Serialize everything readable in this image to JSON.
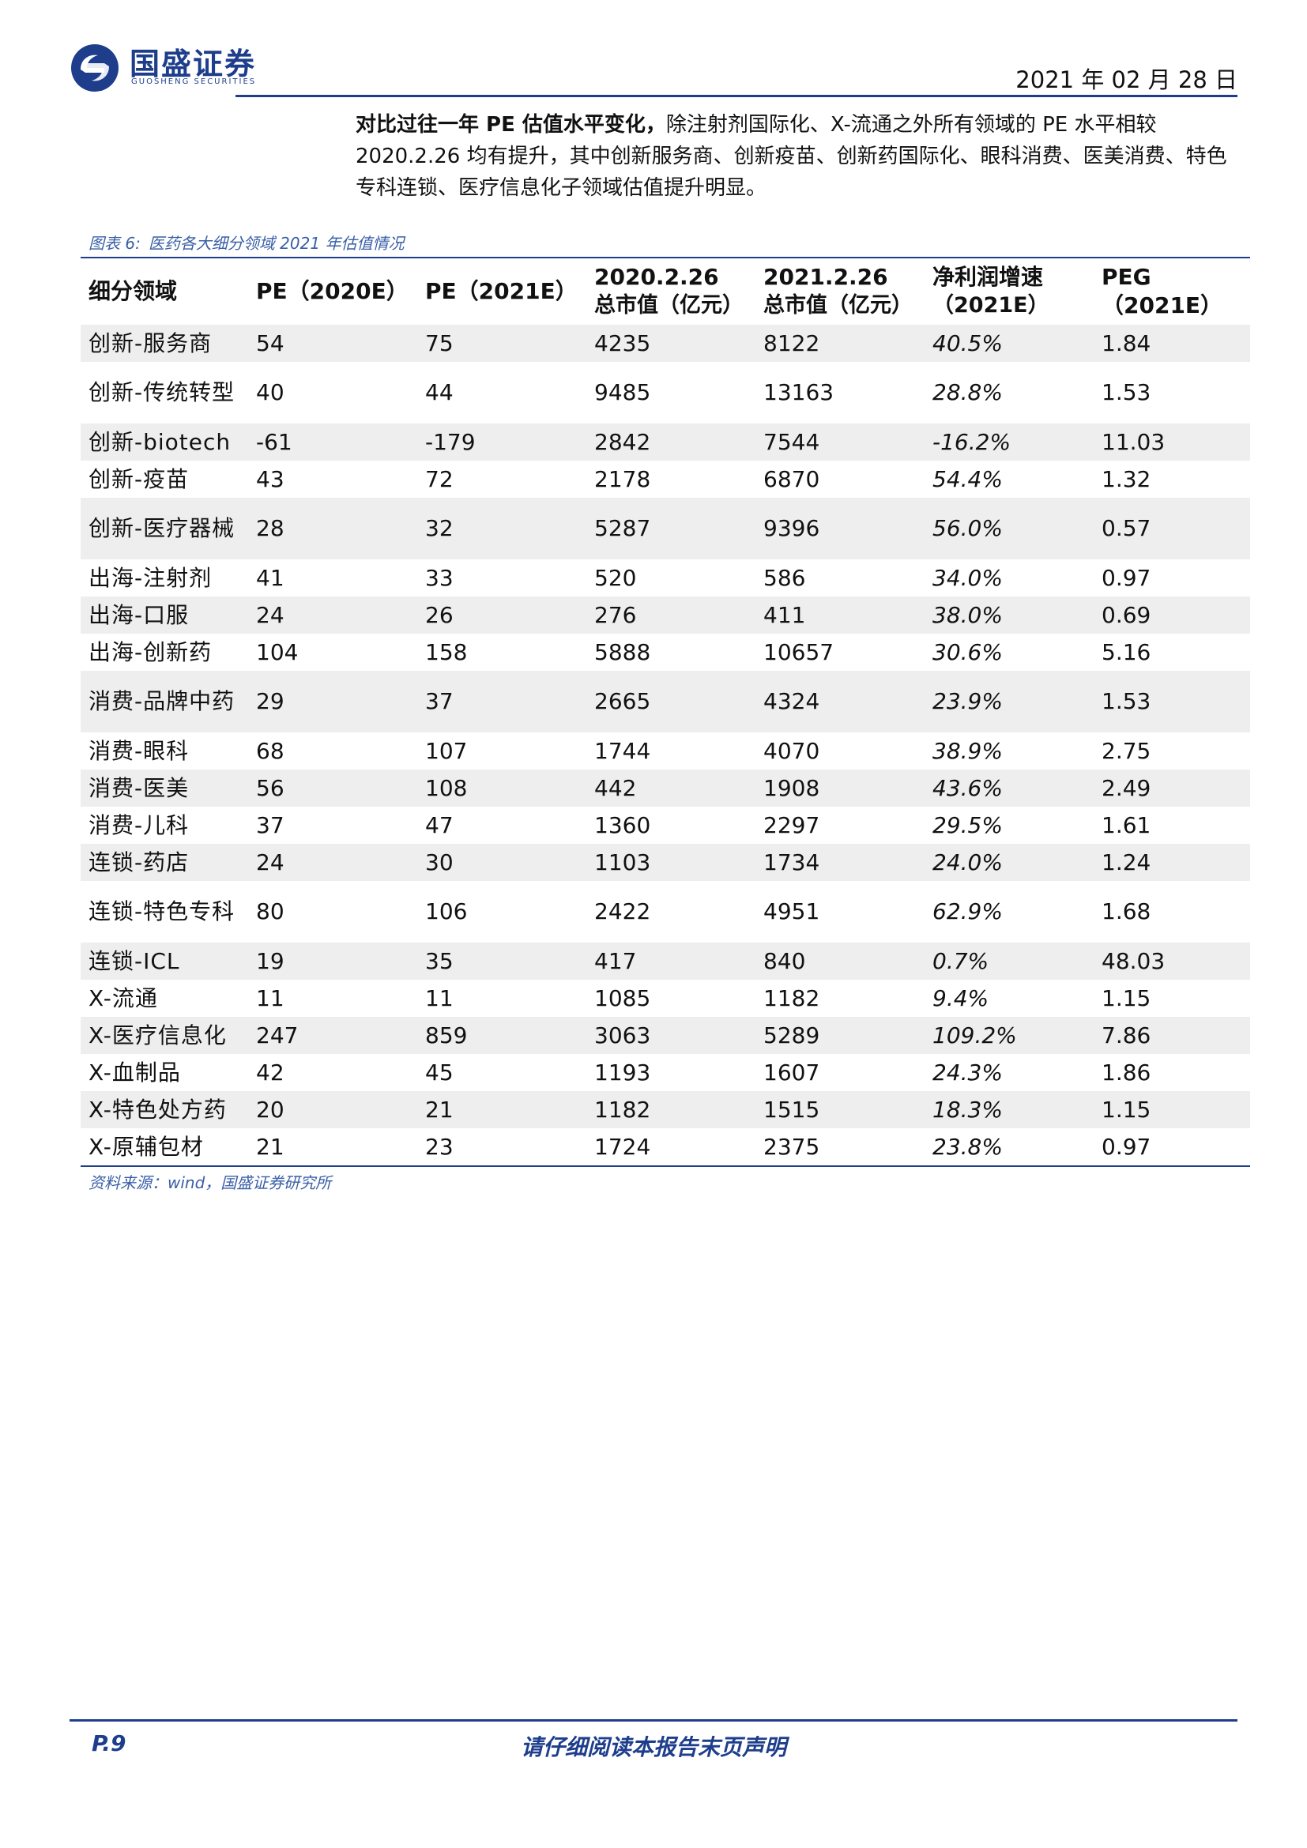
{
  "header": {
    "brand_cn": "国盛证券",
    "brand_en": "GUOSHENG SECURITIES",
    "date": "2021 年 02 月 28 日"
  },
  "intro": {
    "lead": "对比过往一年 PE 估值水平变化，",
    "text": "除注射剂国际化、X-流通之外所有领域的 PE 水平相较 2020.2.26 均有提升，其中创新服务商、创新疫苗、创新药国际化、眼科消费、医美消费、特色专科连锁、医疗信息化子领域估值提升明显。"
  },
  "figure": {
    "label": "图表 6:",
    "title": "医药各大细分领域 2021 年估值情况",
    "columns": [
      {
        "line1": "细分领域",
        "line2": ""
      },
      {
        "line1": "PE（2020E）",
        "line2": ""
      },
      {
        "line1": "PE（2021E）",
        "line2": ""
      },
      {
        "line1": "2020.2.26",
        "line2": "总市值（亿元）"
      },
      {
        "line1": "2021.2.26",
        "line2": "总市值（亿元）"
      },
      {
        "line1": "净利润增速",
        "line2": "（2021E）"
      },
      {
        "line1": "PEG（2021E）",
        "line2": ""
      }
    ],
    "rows": [
      {
        "name": "创新-服务商",
        "pe2020": "54",
        "pe2021": "75",
        "mv2020": "4235",
        "mv2021": "8122",
        "growth": "40.5%",
        "peg": "1.84",
        "tall": false
      },
      {
        "name": "创新-传统转型",
        "pe2020": "40",
        "pe2021": "44",
        "mv2020": "9485",
        "mv2021": "13163",
        "growth": "28.8%",
        "peg": "1.53",
        "tall": true
      },
      {
        "name": "创新-biotech",
        "pe2020": "-61",
        "pe2021": "-179",
        "mv2020": "2842",
        "mv2021": "7544",
        "growth": "-16.2%",
        "peg": "11.03",
        "tall": false
      },
      {
        "name": "创新-疫苗",
        "pe2020": "43",
        "pe2021": "72",
        "mv2020": "2178",
        "mv2021": "6870",
        "growth": "54.4%",
        "peg": "1.32",
        "tall": false
      },
      {
        "name": "创新-医疗器械",
        "pe2020": "28",
        "pe2021": "32",
        "mv2020": "5287",
        "mv2021": "9396",
        "growth": "56.0%",
        "peg": "0.57",
        "tall": true
      },
      {
        "name": "出海-注射剂",
        "pe2020": "41",
        "pe2021": "33",
        "mv2020": "520",
        "mv2021": "586",
        "growth": "34.0%",
        "peg": "0.97",
        "tall": false
      },
      {
        "name": "出海-口服",
        "pe2020": "24",
        "pe2021": "26",
        "mv2020": "276",
        "mv2021": "411",
        "growth": "38.0%",
        "peg": "0.69",
        "tall": false
      },
      {
        "name": "出海-创新药",
        "pe2020": "104",
        "pe2021": "158",
        "mv2020": "5888",
        "mv2021": "10657",
        "growth": "30.6%",
        "peg": "5.16",
        "tall": false
      },
      {
        "name": "消费-品牌中药",
        "pe2020": "29",
        "pe2021": "37",
        "mv2020": "2665",
        "mv2021": "4324",
        "growth": "23.9%",
        "peg": "1.53",
        "tall": true
      },
      {
        "name": "消费-眼科",
        "pe2020": "68",
        "pe2021": "107",
        "mv2020": "1744",
        "mv2021": "4070",
        "growth": "38.9%",
        "peg": "2.75",
        "tall": false
      },
      {
        "name": "消费-医美",
        "pe2020": "56",
        "pe2021": "108",
        "mv2020": "442",
        "mv2021": "1908",
        "growth": "43.6%",
        "peg": "2.49",
        "tall": false
      },
      {
        "name": "消费-儿科",
        "pe2020": "37",
        "pe2021": "47",
        "mv2020": "1360",
        "mv2021": "2297",
        "growth": "29.5%",
        "peg": "1.61",
        "tall": false
      },
      {
        "name": "连锁-药店",
        "pe2020": "24",
        "pe2021": "30",
        "mv2020": "1103",
        "mv2021": "1734",
        "growth": "24.0%",
        "peg": "1.24",
        "tall": false
      },
      {
        "name": "连锁-特色专科",
        "pe2020": "80",
        "pe2021": "106",
        "mv2020": "2422",
        "mv2021": "4951",
        "growth": "62.9%",
        "peg": "1.68",
        "tall": true
      },
      {
        "name": "连锁-ICL",
        "pe2020": "19",
        "pe2021": "35",
        "mv2020": "417",
        "mv2021": "840",
        "growth": "0.7%",
        "peg": "48.03",
        "tall": false
      },
      {
        "name": "X-流通",
        "pe2020": "11",
        "pe2021": "11",
        "mv2020": "1085",
        "mv2021": "1182",
        "growth": "9.4%",
        "peg": "1.15",
        "tall": false
      },
      {
        "name": "X-医疗信息化",
        "pe2020": "247",
        "pe2021": "859",
        "mv2020": "3063",
        "mv2021": "5289",
        "growth": "109.2%",
        "peg": "7.86",
        "tall": false
      },
      {
        "name": "X-血制品",
        "pe2020": "42",
        "pe2021": "45",
        "mv2020": "1193",
        "mv2021": "1607",
        "growth": "24.3%",
        "peg": "1.86",
        "tall": false
      },
      {
        "name": "X-特色处方药",
        "pe2020": "20",
        "pe2021": "21",
        "mv2020": "1182",
        "mv2021": "1515",
        "growth": "18.3%",
        "peg": "1.15",
        "tall": false
      },
      {
        "name": "X-原辅包材",
        "pe2020": "21",
        "pe2021": "23",
        "mv2020": "1724",
        "mv2021": "2375",
        "growth": "23.8%",
        "peg": "0.97",
        "tall": false
      }
    ],
    "source": "资料来源：wind，国盛证券研究所"
  },
  "footer": {
    "page": "P.9",
    "disclaimer": "请仔细阅读本报告末页声明"
  },
  "colors": {
    "brand": "#1e3e8c",
    "caption": "#3a5fa7",
    "row_band": "#eeeeee"
  }
}
